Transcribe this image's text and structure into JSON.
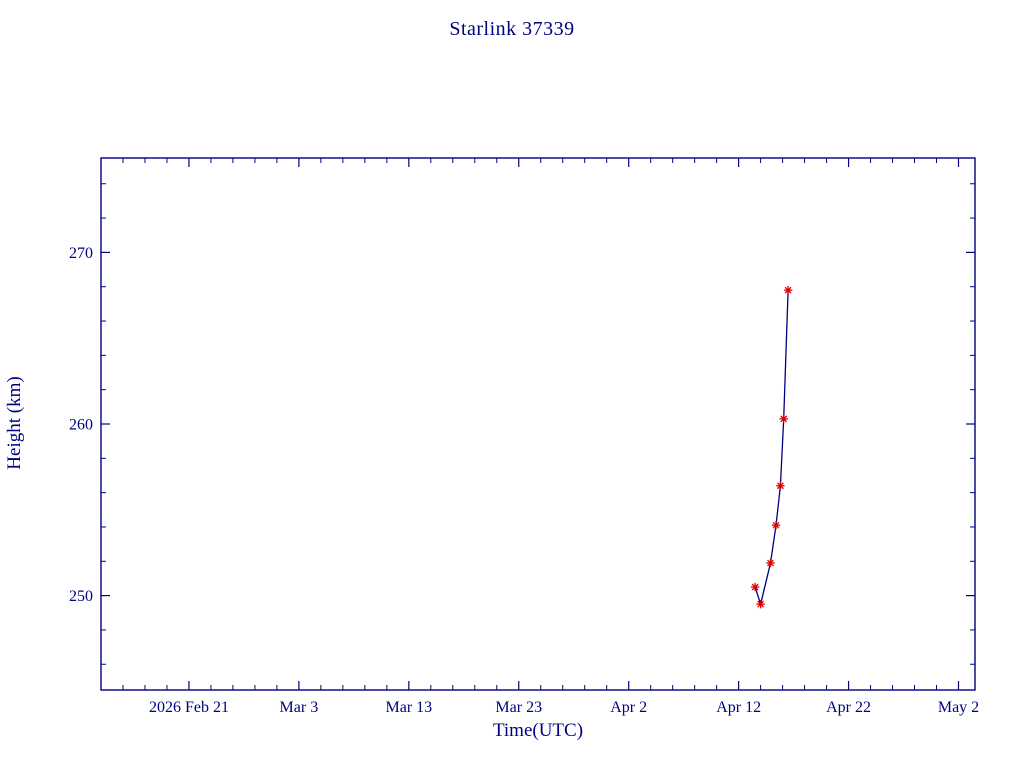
{
  "colors": {
    "axis": "#000080",
    "text": "#000080",
    "line": "#000080",
    "marker": "#dd0000",
    "background": "#ffffff"
  },
  "chart_data": {
    "type": "line",
    "title": "Starlink 37339",
    "xlabel": "Time(UTC)",
    "ylabel": "Height (km)",
    "grid": false,
    "legend": "none",
    "x_axis": {
      "unit": "date-2026",
      "lim_doy": [
        44,
        123.5
      ],
      "minor_step_days": 2,
      "ticks": [
        {
          "label": "2026 Feb 21",
          "doy": 52
        },
        {
          "label": "Mar 3",
          "doy": 62
        },
        {
          "label": "Mar 13",
          "doy": 72
        },
        {
          "label": "Mar 23",
          "doy": 82
        },
        {
          "label": "Apr 2",
          "doy": 92
        },
        {
          "label": "Apr 12",
          "doy": 102
        },
        {
          "label": "Apr 22",
          "doy": 112
        },
        {
          "label": "May 2",
          "doy": 122
        }
      ]
    },
    "y_axis": {
      "lim": [
        244.5,
        275.5
      ],
      "minor_step_km": 2,
      "ticks": [
        {
          "label": "250",
          "value": 250
        },
        {
          "label": "260",
          "value": 260
        },
        {
          "label": "270",
          "value": 270
        }
      ]
    },
    "series": [
      {
        "name": "height",
        "marker": "asterisk",
        "points": [
          {
            "date": "2026 Apr 13",
            "doy": 103.5,
            "height_km": 250.5
          },
          {
            "date": "2026 Apr 14",
            "doy": 104.0,
            "height_km": 249.5
          },
          {
            "date": "2026 Apr 15",
            "doy": 104.9,
            "height_km": 251.9
          },
          {
            "date": "2026 Apr 15",
            "doy": 105.4,
            "height_km": 254.1
          },
          {
            "date": "2026 Apr 16",
            "doy": 105.8,
            "height_km": 256.4
          },
          {
            "date": "2026 Apr 16",
            "doy": 106.1,
            "height_km": 260.3
          },
          {
            "date": "2026 Apr 16",
            "doy": 106.5,
            "height_km": 267.8
          }
        ]
      }
    ]
  }
}
